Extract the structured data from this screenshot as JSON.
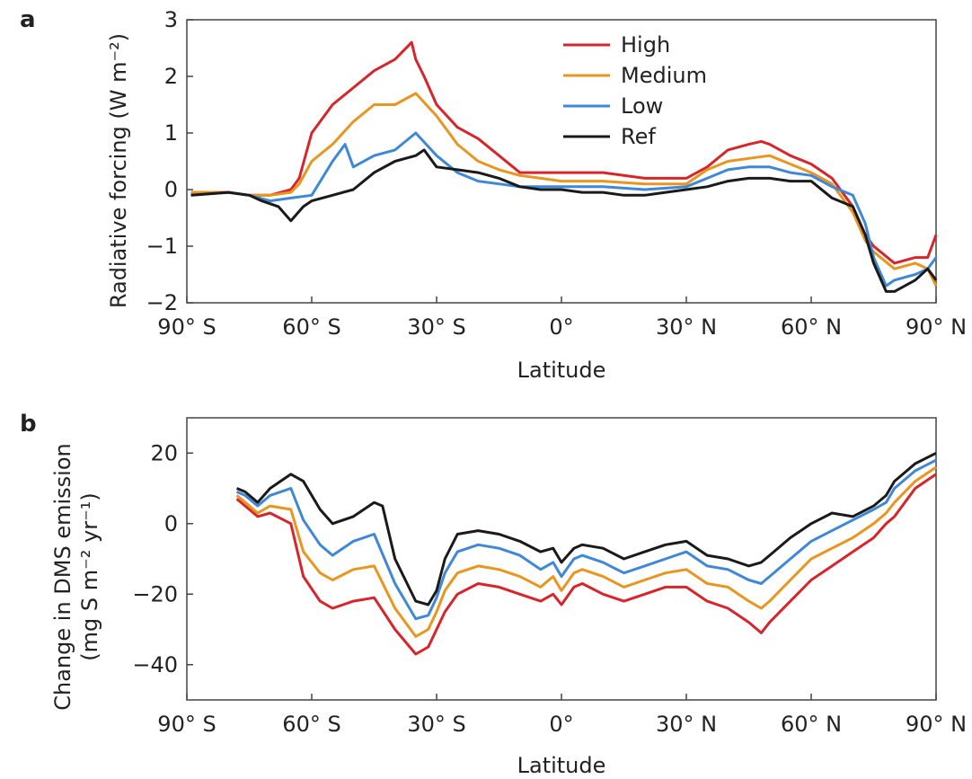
{
  "colors": {
    "High": "#d7262b",
    "Medium": "#e8961f",
    "Low": "#3f88d8",
    "Ref": "#1a1a1a"
  },
  "chart_data": [
    {
      "panel": "a",
      "type": "line",
      "xlabel": "Latitude",
      "ylabel": "Radiative forcing (W m⁻²)",
      "x_tick_labels": [
        "90° S",
        "60° S",
        "30° S",
        "0°",
        "30° N",
        "60° N",
        "90° N"
      ],
      "x_ticks": [
        -90,
        -60,
        -30,
        0,
        30,
        60,
        90
      ],
      "y_ticks": [
        -2,
        -1,
        0,
        1,
        2,
        3
      ],
      "y_tick_labels": [
        "−2",
        "−1",
        "0",
        "1",
        "2",
        "3"
      ],
      "xlim": [
        -90,
        90
      ],
      "ylim": [
        -2,
        3
      ],
      "grid": false,
      "legend": {
        "placement": "top-center",
        "entries": [
          "High",
          "Medium",
          "Low",
          "Ref"
        ]
      },
      "series": [
        {
          "name": "High",
          "color_key": "High",
          "x": [
            -89,
            -80,
            -75,
            -70,
            -65,
            -63,
            -60,
            -55,
            -50,
            -45,
            -40,
            -36,
            -35,
            -33,
            -30,
            -25,
            -20,
            -15,
            -10,
            -5,
            0,
            10,
            20,
            30,
            35,
            40,
            45,
            48,
            50,
            55,
            60,
            65,
            70,
            73,
            75,
            80,
            85,
            88,
            90
          ],
          "y": [
            -0.05,
            -0.05,
            -0.1,
            -0.1,
            0.0,
            0.2,
            1.0,
            1.5,
            1.8,
            2.1,
            2.3,
            2.6,
            2.3,
            2.0,
            1.5,
            1.1,
            0.9,
            0.6,
            0.3,
            0.3,
            0.3,
            0.3,
            0.2,
            0.2,
            0.4,
            0.7,
            0.8,
            0.85,
            0.8,
            0.6,
            0.45,
            0.2,
            -0.3,
            -0.8,
            -1.0,
            -1.3,
            -1.2,
            -1.2,
            -0.8
          ]
        },
        {
          "name": "Medium",
          "color_key": "Medium",
          "x": [
            -89,
            -80,
            -75,
            -70,
            -65,
            -63,
            -60,
            -55,
            -50,
            -45,
            -40,
            -35,
            -30,
            -25,
            -20,
            -15,
            -10,
            -5,
            0,
            10,
            20,
            30,
            35,
            40,
            45,
            50,
            55,
            60,
            65,
            70,
            73,
            75,
            80,
            85,
            88,
            90
          ],
          "y": [
            -0.05,
            -0.05,
            -0.1,
            -0.1,
            -0.05,
            0.1,
            0.5,
            0.8,
            1.2,
            1.5,
            1.5,
            1.7,
            1.3,
            0.8,
            0.5,
            0.35,
            0.25,
            0.2,
            0.15,
            0.15,
            0.1,
            0.1,
            0.35,
            0.5,
            0.55,
            0.6,
            0.45,
            0.3,
            0.1,
            -0.4,
            -0.9,
            -1.1,
            -1.4,
            -1.3,
            -1.4,
            -1.7
          ]
        },
        {
          "name": "Low",
          "color_key": "Low",
          "x": [
            -89,
            -80,
            -75,
            -70,
            -65,
            -60,
            -55,
            -52,
            -50,
            -45,
            -40,
            -35,
            -30,
            -25,
            -20,
            -15,
            -10,
            -5,
            0,
            10,
            20,
            30,
            35,
            40,
            45,
            50,
            55,
            60,
            65,
            70,
            73,
            75,
            78,
            80,
            85,
            88,
            90
          ],
          "y": [
            -0.1,
            -0.05,
            -0.1,
            -0.2,
            -0.15,
            -0.1,
            0.5,
            0.8,
            0.4,
            0.6,
            0.7,
            1.0,
            0.6,
            0.3,
            0.15,
            0.1,
            0.05,
            0.05,
            0.05,
            0.05,
            0.0,
            0.05,
            0.2,
            0.35,
            0.4,
            0.4,
            0.3,
            0.25,
            0.05,
            -0.1,
            -0.6,
            -1.2,
            -1.7,
            -1.6,
            -1.5,
            -1.4,
            -1.2
          ]
        },
        {
          "name": "Ref",
          "color_key": "Ref",
          "x": [
            -89,
            -80,
            -75,
            -72,
            -68,
            -65,
            -62,
            -60,
            -55,
            -50,
            -45,
            -40,
            -35,
            -33,
            -30,
            -25,
            -20,
            -15,
            -10,
            -5,
            0,
            5,
            10,
            15,
            20,
            25,
            30,
            35,
            40,
            45,
            50,
            55,
            60,
            65,
            70,
            73,
            75,
            78,
            80,
            85,
            88,
            90
          ],
          "y": [
            -0.1,
            -0.05,
            -0.1,
            -0.2,
            -0.3,
            -0.55,
            -0.3,
            -0.2,
            -0.1,
            0.0,
            0.3,
            0.5,
            0.6,
            0.7,
            0.4,
            0.35,
            0.3,
            0.2,
            0.05,
            0.0,
            0.0,
            -0.05,
            -0.05,
            -0.1,
            -0.1,
            -0.05,
            0.0,
            0.05,
            0.15,
            0.2,
            0.2,
            0.15,
            0.15,
            -0.15,
            -0.3,
            -0.8,
            -1.3,
            -1.8,
            -1.8,
            -1.6,
            -1.4,
            -1.6
          ]
        }
      ]
    },
    {
      "panel": "b",
      "type": "line",
      "xlabel": "Latitude",
      "ylabel": "Change in DMS emission",
      "ylabel2": "(mg S m⁻² yr⁻¹)",
      "x_tick_labels": [
        "90° S",
        "60° S",
        "30° S",
        "0°",
        "30° N",
        "60° N",
        "90° N"
      ],
      "x_ticks": [
        -90,
        -60,
        -30,
        0,
        30,
        60,
        90
      ],
      "y_ticks": [
        -40,
        -20,
        0,
        20
      ],
      "y_tick_labels": [
        "−40",
        "−20",
        "0",
        "20"
      ],
      "xlim": [
        -90,
        90
      ],
      "ylim": [
        -50,
        30
      ],
      "grid": false,
      "series": [
        {
          "name": "High",
          "color_key": "High",
          "x": [
            -78,
            -76,
            -73,
            -70,
            -65,
            -62,
            -58,
            -55,
            -50,
            -45,
            -40,
            -35,
            -32,
            -30,
            -28,
            -25,
            -20,
            -15,
            -10,
            -5,
            -2,
            0,
            3,
            5,
            10,
            15,
            20,
            25,
            30,
            35,
            40,
            45,
            48,
            50,
            55,
            60,
            65,
            70,
            75,
            78,
            80,
            85,
            90
          ],
          "y": [
            7,
            5,
            2,
            3,
            0,
            -15,
            -22,
            -24,
            -22,
            -21,
            -30,
            -37,
            -35,
            -30,
            -25,
            -20,
            -17,
            -18,
            -20,
            -22,
            -20,
            -23,
            -18,
            -17,
            -20,
            -22,
            -20,
            -18,
            -18,
            -22,
            -24,
            -28,
            -31,
            -28,
            -22,
            -16,
            -12,
            -8,
            -4,
            0,
            2,
            10,
            14
          ]
        },
        {
          "name": "Medium",
          "color_key": "Medium",
          "x": [
            -78,
            -76,
            -73,
            -70,
            -65,
            -62,
            -58,
            -55,
            -50,
            -45,
            -40,
            -35,
            -32,
            -30,
            -28,
            -25,
            -20,
            -15,
            -10,
            -5,
            -2,
            0,
            3,
            5,
            10,
            15,
            20,
            25,
            30,
            35,
            40,
            45,
            48,
            50,
            55,
            60,
            65,
            70,
            75,
            78,
            80,
            85,
            90
          ],
          "y": [
            8,
            6,
            3,
            5,
            4,
            -8,
            -14,
            -16,
            -13,
            -12,
            -24,
            -32,
            -30,
            -25,
            -19,
            -14,
            -12,
            -13,
            -15,
            -18,
            -15,
            -19,
            -14,
            -13,
            -15,
            -18,
            -16,
            -14,
            -13,
            -17,
            -18,
            -22,
            -24,
            -22,
            -16,
            -10,
            -7,
            -4,
            0,
            3,
            6,
            12,
            16
          ]
        },
        {
          "name": "Low",
          "color_key": "Low",
          "x": [
            -78,
            -76,
            -73,
            -70,
            -65,
            -62,
            -58,
            -55,
            -50,
            -45,
            -40,
            -35,
            -32,
            -30,
            -28,
            -25,
            -20,
            -15,
            -10,
            -5,
            -2,
            0,
            3,
            5,
            10,
            15,
            20,
            25,
            30,
            35,
            40,
            45,
            48,
            50,
            55,
            60,
            65,
            70,
            75,
            78,
            80,
            85,
            90
          ],
          "y": [
            9,
            8,
            5,
            8,
            10,
            1,
            -6,
            -9,
            -5,
            -3,
            -17,
            -27,
            -26,
            -21,
            -14,
            -8,
            -6,
            -7,
            -9,
            -13,
            -11,
            -15,
            -10,
            -9,
            -11,
            -14,
            -12,
            -10,
            -8,
            -12,
            -13,
            -16,
            -17,
            -15,
            -10,
            -5,
            -2,
            1,
            4,
            6,
            10,
            15,
            18
          ]
        },
        {
          "name": "Ref",
          "color_key": "Ref",
          "x": [
            -78,
            -76,
            -73,
            -70,
            -65,
            -62,
            -58,
            -55,
            -50,
            -45,
            -43,
            -40,
            -35,
            -32,
            -30,
            -28,
            -25,
            -20,
            -15,
            -10,
            -5,
            -2,
            0,
            3,
            5,
            10,
            15,
            20,
            25,
            30,
            35,
            40,
            45,
            48,
            50,
            55,
            60,
            65,
            70,
            75,
            78,
            80,
            85,
            90
          ],
          "y": [
            10,
            9,
            6,
            10,
            14,
            12,
            4,
            0,
            2,
            6,
            5,
            -10,
            -22,
            -23,
            -19,
            -10,
            -3,
            -2,
            -3,
            -5,
            -8,
            -7,
            -11,
            -7,
            -6,
            -7,
            -10,
            -8,
            -6,
            -5,
            -9,
            -10,
            -12,
            -11,
            -9,
            -4,
            0,
            3,
            2,
            5,
            8,
            12,
            17,
            20
          ]
        }
      ]
    }
  ]
}
